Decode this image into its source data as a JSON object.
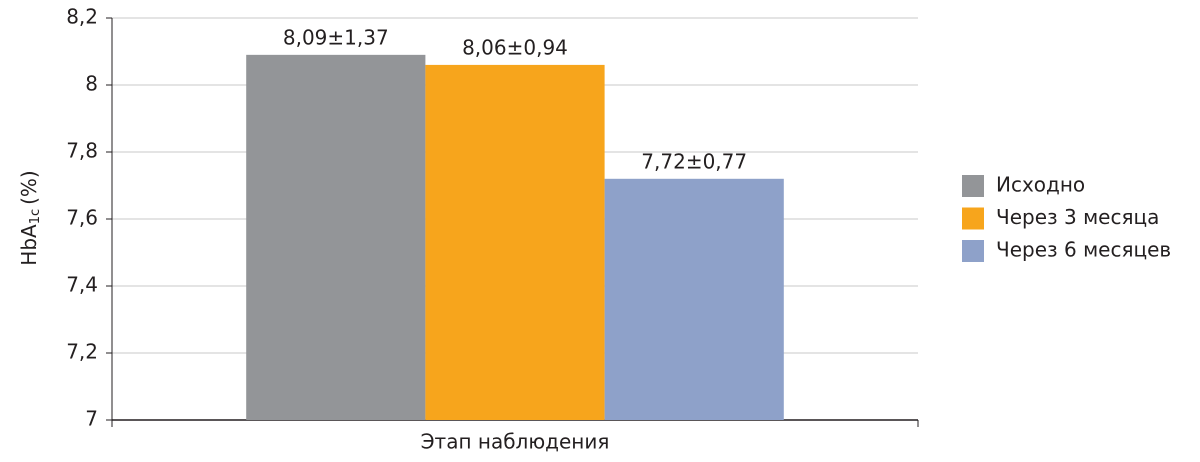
{
  "chart_data": {
    "type": "bar",
    "y_label": {
      "main": "HbA",
      "sub": "1c",
      "unit": "(%)"
    },
    "x_label": "Этап наблюдения",
    "categories": [
      null
    ],
    "series": [
      {
        "name": "Исходно",
        "color": "#939598",
        "values": [
          8.09
        ],
        "value_labels": [
          "8,09±1,37"
        ]
      },
      {
        "name": "Через 3 месяца",
        "color": "#f7a51c",
        "values": [
          8.06
        ],
        "value_labels": [
          "8,06±0,94"
        ]
      },
      {
        "name": "Через 6 месяцев",
        "color": "#8ea1c9",
        "values": [
          7.72
        ],
        "value_labels": [
          "7,72±0,77"
        ]
      }
    ],
    "ylim": [
      7,
      8.2
    ],
    "yticks": [
      7,
      {
        "value": 7.2,
        "label": "7,2"
      },
      {
        "value": 7.4,
        "label": "7,4"
      },
      {
        "value": 7.6,
        "label": "7,6"
      },
      {
        "value": 7.8,
        "label": "7,8"
      },
      8,
      {
        "value": 8.2,
        "label": "8,2"
      }
    ],
    "grid": true,
    "legend": "right"
  }
}
